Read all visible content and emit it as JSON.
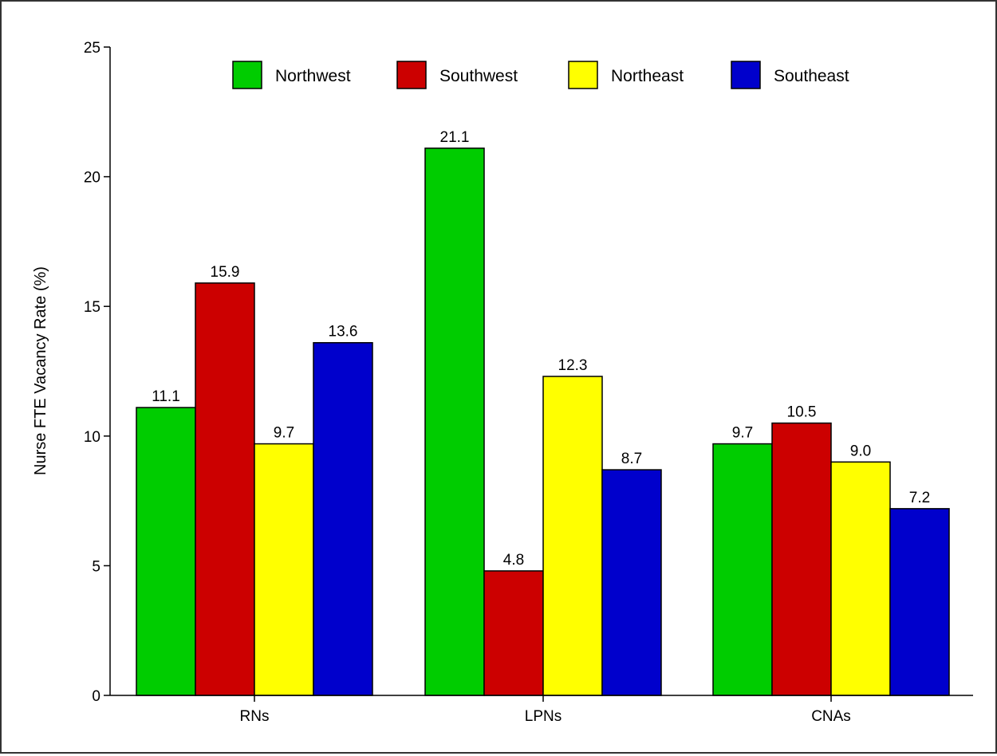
{
  "chart_data": {
    "type": "bar",
    "categories": [
      "RNs",
      "LPNs",
      "CNAs"
    ],
    "series": [
      {
        "name": "Northwest",
        "color": "#00cc00",
        "values": [
          11.1,
          21.1,
          9.7
        ],
        "labels": [
          "11.1",
          "21.1",
          "9.7"
        ]
      },
      {
        "name": "Southwest",
        "color": "#cc0000",
        "values": [
          15.9,
          4.8,
          10.5
        ],
        "labels": [
          "15.9",
          "4.8",
          "10.5"
        ]
      },
      {
        "name": "Northeast",
        "color": "#ffff00",
        "values": [
          9.7,
          12.3,
          9.0
        ],
        "labels": [
          "9.7",
          "12.3",
          "9.0"
        ]
      },
      {
        "name": "Southeast",
        "color": "#0000cc",
        "values": [
          13.6,
          8.7,
          7.2
        ],
        "labels": [
          "13.6",
          "8.7",
          "7.2"
        ]
      }
    ],
    "title": "",
    "xlabel": "",
    "ylabel": "Nurse FTE Vacancy Rate (%)",
    "ylim": [
      0,
      25
    ],
    "yticks": [
      0,
      5,
      10,
      15,
      20,
      25
    ],
    "ytick_labels": [
      "0",
      "5",
      "10",
      "15",
      "20",
      "25"
    ],
    "grid": false,
    "legend_position": "top"
  }
}
